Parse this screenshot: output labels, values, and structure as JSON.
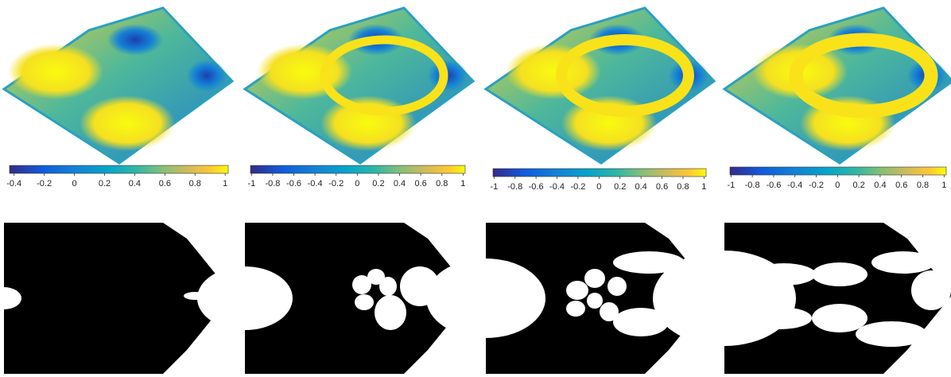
{
  "panels": [
    {
      "colorbar": {
        "lim": [
          -0.43,
          1.02
        ],
        "ticks": [
          -0.4,
          -0.2,
          0,
          0.2,
          0.4,
          0.6,
          0.8,
          1
        ]
      }
    },
    {
      "colorbar": {
        "lim": [
          -1.01,
          1.02
        ],
        "ticks": [
          -1,
          -0.8,
          -0.6,
          -0.4,
          -0.2,
          0,
          0.2,
          0.4,
          0.6,
          0.8,
          1
        ]
      }
    },
    {
      "colorbar": {
        "lim": [
          -1.01,
          1.02
        ],
        "ticks": [
          -1,
          -0.8,
          -0.6,
          -0.4,
          -0.2,
          0,
          0.2,
          0.4,
          0.6,
          0.8,
          1
        ]
      }
    },
    {
      "colorbar": {
        "lim": [
          -1.01,
          1.02
        ],
        "ticks": [
          -1,
          -0.8,
          -0.6,
          -0.4,
          -0.2,
          0,
          0.2,
          0.4,
          0.6,
          0.8,
          1
        ]
      }
    }
  ]
}
